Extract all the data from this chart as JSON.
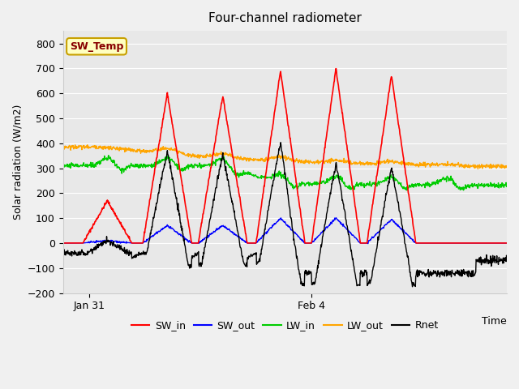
{
  "title": "Four-channel radiometer",
  "xlabel": "Time",
  "ylabel": "Solar radiation (W/m2)",
  "ylim": [
    -200,
    850
  ],
  "yticks": [
    -200,
    -100,
    0,
    100,
    200,
    300,
    400,
    500,
    600,
    700,
    800
  ],
  "xtick_labels": [
    "Jan 31",
    "Feb 4"
  ],
  "xtick_pos": [
    0.06,
    0.56
  ],
  "annotation_label": "SW_Temp",
  "annotation_bg": "#ffffc0",
  "annotation_border": "#c8a000",
  "annotation_text_color": "#880000",
  "plot_bg": "#e8e8e8",
  "fig_bg": "#f0f0f0",
  "colors": {
    "SW_in": "#ff0000",
    "SW_out": "#0000ff",
    "LW_in": "#00cc00",
    "LW_out": "#ffa500",
    "Rnet": "#000000"
  },
  "legend_entries": [
    "SW_in",
    "SW_out",
    "LW_in",
    "LW_out",
    "Rnet"
  ]
}
